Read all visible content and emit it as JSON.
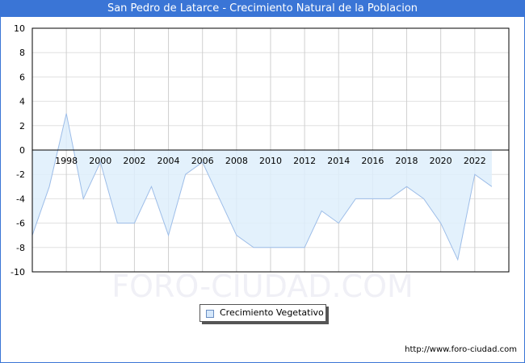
{
  "header": {
    "title": "San Pedro de Latarce - Crecimiento Natural de la Poblacion"
  },
  "legend": {
    "label": "Crecimiento Vegetativo"
  },
  "footer": {
    "url": "http://www.foro-ciudad.com"
  },
  "watermark": {
    "text": "FORO-CIUDAD.COM"
  },
  "colors": {
    "title_bar": "#3a75d6",
    "area_fill": "#deeefc",
    "line": "#9dbde8",
    "grid": "#d0d0d0"
  },
  "chart_data": {
    "type": "area",
    "title": "San Pedro de Latarce - Crecimiento Natural de la Poblacion",
    "xlabel": "",
    "ylabel": "",
    "ylim": [
      -10,
      10
    ],
    "yticks": [
      10,
      8,
      6,
      4,
      2,
      0,
      -2,
      -4,
      -6,
      -8,
      -10
    ],
    "xtick_labels": [
      "1998",
      "2000",
      "2002",
      "2004",
      "2006",
      "2008",
      "2010",
      "2012",
      "2014",
      "2016",
      "2018",
      "2020",
      "2022"
    ],
    "grid": true,
    "legend_position": "bottom-center",
    "x": [
      1996,
      1997,
      1998,
      1999,
      2000,
      2001,
      2002,
      2003,
      2004,
      2005,
      2006,
      2007,
      2008,
      2009,
      2010,
      2011,
      2012,
      2013,
      2014,
      2015,
      2016,
      2017,
      2018,
      2019,
      2020,
      2021,
      2022,
      2023
    ],
    "series": [
      {
        "name": "Crecimiento Vegetativo",
        "values": [
          -7,
          -3,
          3,
          -4,
          -1,
          -6,
          -6,
          -3,
          -7,
          -2,
          -1,
          -4,
          -7,
          -8,
          -8,
          -8,
          -8,
          -5,
          -6,
          -4,
          -4,
          -4,
          -3,
          -4,
          -6,
          -9,
          -2,
          -3
        ]
      }
    ]
  }
}
